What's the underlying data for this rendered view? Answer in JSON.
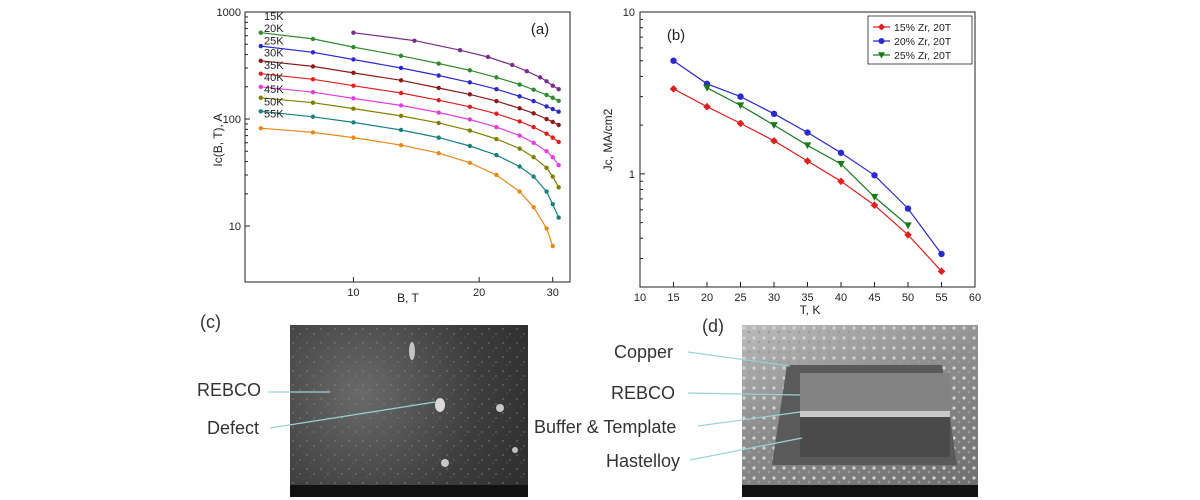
{
  "panels": {
    "a": "(a)",
    "b": "(b)",
    "c": "(c)",
    "d": "(d)"
  },
  "chart_data": [
    {
      "type": "line",
      "panel": "(a)",
      "xlabel": "B, T",
      "ylabel": "Ic(B, T), A",
      "xscale": "log",
      "yscale": "log",
      "xlim": [
        5.5,
        33
      ],
      "ylim": [
        3,
        1000
      ],
      "xticks": [
        10,
        20,
        30
      ],
      "yticks": [
        10,
        100,
        1000
      ],
      "legend_placement": "top-left",
      "grid": false,
      "series": [
        {
          "name": "15K",
          "color": "#7b2d8e",
          "x": [
            10,
            14,
            18,
            21,
            24,
            26,
            28,
            29,
            30,
            31
          ],
          "y": [
            640,
            540,
            440,
            380,
            320,
            280,
            245,
            225,
            205,
            190
          ]
        },
        {
          "name": "20K",
          "color": "#2e8b2e",
          "x": [
            6,
            8,
            10,
            13,
            16,
            19,
            22,
            25,
            27,
            29,
            30,
            31
          ],
          "y": [
            640,
            560,
            470,
            390,
            330,
            285,
            245,
            210,
            188,
            168,
            158,
            148
          ]
        },
        {
          "name": "25K",
          "color": "#2a2acc",
          "x": [
            6,
            8,
            10,
            13,
            16,
            19,
            22,
            25,
            27,
            29,
            30,
            31
          ],
          "y": [
            480,
            420,
            360,
            300,
            255,
            220,
            190,
            163,
            147,
            131,
            124,
            117
          ]
        },
        {
          "name": "30K",
          "color": "#8b1a1a",
          "x": [
            6,
            8,
            10,
            13,
            16,
            19,
            22,
            25,
            27,
            29,
            30,
            31
          ],
          "y": [
            350,
            310,
            270,
            230,
            195,
            170,
            147,
            126,
            113,
            100,
            94,
            88
          ]
        },
        {
          "name": "35K",
          "color": "#e02020",
          "x": [
            6,
            8,
            10,
            13,
            16,
            19,
            22,
            25,
            27,
            29,
            30,
            31
          ],
          "y": [
            265,
            235,
            205,
            175,
            150,
            130,
            112,
            95,
            84,
            73,
            67,
            61
          ]
        },
        {
          "name": "40K",
          "color": "#e040e0",
          "x": [
            6,
            8,
            10,
            13,
            16,
            19,
            22,
            25,
            27,
            29,
            30,
            31
          ],
          "y": [
            200,
            178,
            156,
            134,
            115,
            99,
            84,
            70,
            60,
            50,
            44,
            37
          ]
        },
        {
          "name": "45K",
          "color": "#808000",
          "x": [
            6,
            8,
            10,
            13,
            16,
            19,
            22,
            25,
            27,
            29,
            30,
            31
          ],
          "y": [
            158,
            142,
            125,
            107,
            92,
            78,
            65,
            53,
            44,
            35,
            29,
            23
          ]
        },
        {
          "name": "50K",
          "color": "#1a8080",
          "x": [
            6,
            8,
            10,
            13,
            16,
            19,
            22,
            25,
            27,
            29,
            30,
            31
          ],
          "y": [
            118,
            105,
            93,
            79,
            67,
            56,
            46,
            36,
            29,
            21,
            16,
            12
          ]
        },
        {
          "name": "55K",
          "color": "#e88a1a",
          "x": [
            6,
            8,
            10,
            13,
            16,
            19,
            22,
            25,
            27,
            29,
            30
          ],
          "y": [
            82,
            75,
            67,
            57,
            48,
            39,
            30,
            21,
            15,
            9.5,
            6.5
          ]
        }
      ]
    },
    {
      "type": "line",
      "panel": "(b)",
      "xlabel": "T, K",
      "ylabel": "Jc, MA/cm2",
      "yscale": "log",
      "xlim": [
        10,
        60
      ],
      "ylim": [
        0.2,
        10
      ],
      "xticks": [
        10,
        15,
        20,
        25,
        30,
        35,
        40,
        45,
        50,
        55,
        60
      ],
      "yticks": [
        1,
        10
      ],
      "legend_placement": "top-right",
      "grid": false,
      "series": [
        {
          "name": "15% Zr, 20T",
          "color": "#e02020",
          "marker": "diamond",
          "x": [
            15,
            20,
            25,
            30,
            35,
            40,
            45,
            50,
            55
          ],
          "y": [
            3.35,
            2.6,
            2.05,
            1.6,
            1.2,
            0.9,
            0.64,
            0.42,
            0.25
          ]
        },
        {
          "name": "20% Zr, 20T",
          "color": "#2a2acc",
          "marker": "circle",
          "x": [
            15,
            20,
            25,
            30,
            35,
            40,
            45,
            50,
            55
          ],
          "y": [
            5.0,
            3.6,
            3.0,
            2.35,
            1.8,
            1.35,
            0.98,
            0.61,
            0.32
          ]
        },
        {
          "name": "25% Zr, 20T",
          "color": "#1a7a1a",
          "marker": "triangle-down",
          "x": [
            20,
            25,
            30,
            35,
            40,
            45,
            50
          ],
          "y": [
            3.4,
            2.65,
            2.0,
            1.5,
            1.15,
            0.72,
            0.48
          ]
        }
      ]
    }
  ],
  "micrographs": {
    "c": {
      "labels": {
        "rebco": "REBCO",
        "defect": "Defect"
      }
    },
    "d": {
      "labels": {
        "copper": "Copper",
        "rebco": "REBCO",
        "buffer": "Buffer & Template",
        "hastelloy": "Hastelloy"
      }
    }
  }
}
